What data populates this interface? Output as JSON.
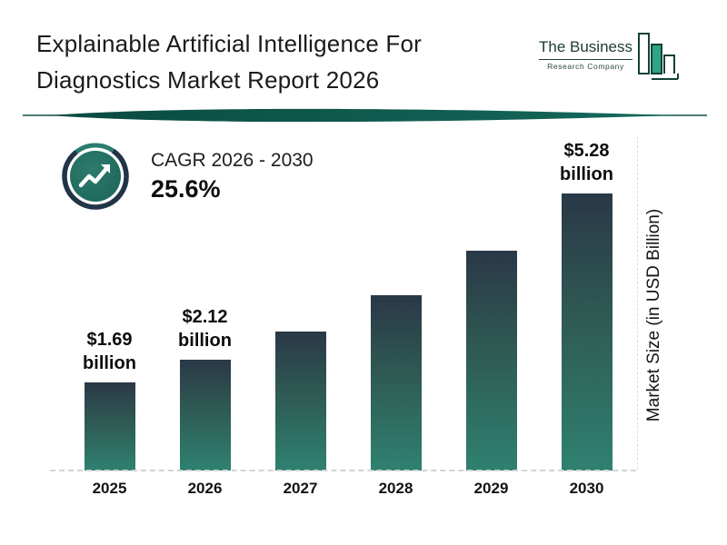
{
  "header": {
    "title_line1": "Explainable Artificial Intelligence For",
    "title_line2": "Diagnostics Market Report 2026",
    "logo": {
      "line1": "The Business",
      "line2": "Research Company"
    }
  },
  "cagr": {
    "label": "CAGR 2026 - 2030",
    "value": "25.6%"
  },
  "chart_data": {
    "type": "bar",
    "title": "Explainable Artificial Intelligence For Diagnostics Market Report 2026",
    "categories": [
      "2025",
      "2026",
      "2027",
      "2028",
      "2029",
      "2030"
    ],
    "values": [
      1.69,
      2.12,
      2.66,
      3.35,
      4.2,
      5.28
    ],
    "value_labels": [
      "$1.69 billion",
      "$2.12 billion",
      "",
      "",
      "",
      "$5.28 billion"
    ],
    "xlabel": "",
    "ylabel": "Market Size (in USD Billion)",
    "ylim": [
      0,
      5.6
    ],
    "grid": false,
    "legend": false,
    "colors": {
      "bar_top": "#2a3847",
      "bar_bottom": "#2f8170",
      "accent_teal": "#0d5348",
      "ring_dark": "#223447",
      "logo_green": "#2ea583"
    }
  }
}
